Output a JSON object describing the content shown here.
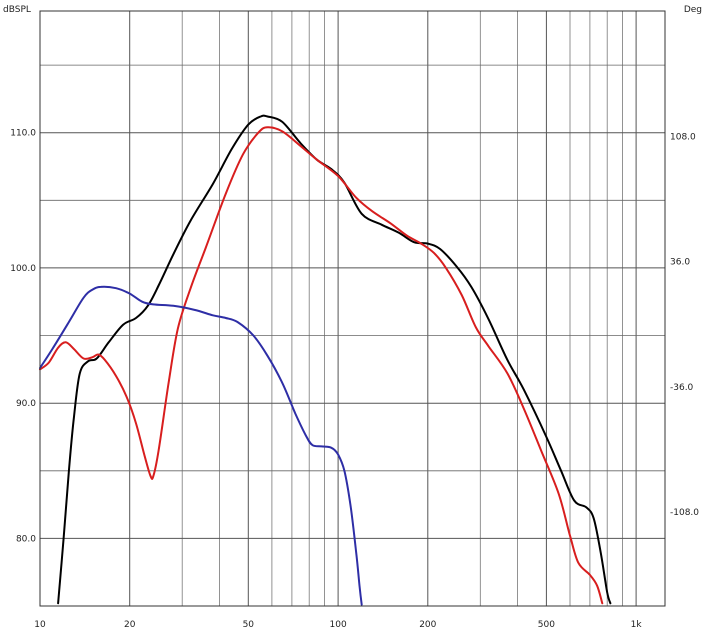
{
  "chart_data": {
    "type": "line",
    "x_scale": "log",
    "xlim": [
      10,
      1250
    ],
    "ylim": [
      75,
      119
    ],
    "y2lim": [
      -162,
      180
    ],
    "grid": true,
    "legend": "none",
    "y_left_label": "dBSPL",
    "y_right_label": "Deg",
    "x_ticks": [
      {
        "value": 10,
        "label": "10"
      },
      {
        "value": 20,
        "label": "20"
      },
      {
        "value": 50,
        "label": "50"
      },
      {
        "value": 100,
        "label": "100"
      },
      {
        "value": 200,
        "label": "200"
      },
      {
        "value": 500,
        "label": "500"
      },
      {
        "value": 1000,
        "label": "1k"
      }
    ],
    "x_minor_grid": [
      30,
      40,
      60,
      70,
      80,
      90,
      300,
      400,
      600,
      700,
      800,
      900
    ],
    "y_ticks": [
      {
        "value": 110,
        "label": "110.0"
      },
      {
        "value": 100,
        "label": "100.0"
      },
      {
        "value": 90,
        "label": "90.0"
      },
      {
        "value": 80,
        "label": "80.0"
      }
    ],
    "y_minor_grid": [
      115,
      105,
      95,
      85
    ],
    "y2_ticks": [
      {
        "value": 108,
        "label": "108.0"
      },
      {
        "value": 36,
        "label": "36.0"
      },
      {
        "value": -36,
        "label": "-36.0"
      },
      {
        "value": -108,
        "label": "-108.0"
      }
    ],
    "series": [
      {
        "color": "#000000",
        "axis": "left",
        "points": [
          [
            11.5,
            75.2
          ],
          [
            12,
            80
          ],
          [
            12.5,
            85
          ],
          [
            13,
            89
          ],
          [
            13.6,
            92.2
          ],
          [
            14.5,
            93.1
          ],
          [
            15.5,
            93.3
          ],
          [
            17,
            94.5
          ],
          [
            19,
            95.8
          ],
          [
            21,
            96.3
          ],
          [
            23,
            97.2
          ],
          [
            25,
            98.7
          ],
          [
            28,
            101
          ],
          [
            32,
            103.5
          ],
          [
            38,
            106.2
          ],
          [
            44,
            108.8
          ],
          [
            50,
            110.6
          ],
          [
            55,
            111.2
          ],
          [
            58,
            111.2
          ],
          [
            65,
            110.8
          ],
          [
            75,
            109.2
          ],
          [
            85,
            108
          ],
          [
            95,
            107.3
          ],
          [
            105,
            106.3
          ],
          [
            120,
            104
          ],
          [
            140,
            103.2
          ],
          [
            160,
            102.6
          ],
          [
            180,
            101.9
          ],
          [
            200,
            101.8
          ],
          [
            220,
            101.4
          ],
          [
            250,
            100.1
          ],
          [
            280,
            98.6
          ],
          [
            320,
            96.2
          ],
          [
            370,
            93.2
          ],
          [
            420,
            91
          ],
          [
            500,
            87.5
          ],
          [
            560,
            85
          ],
          [
            620,
            82.8
          ],
          [
            680,
            82.3
          ],
          [
            720,
            81.5
          ],
          [
            760,
            79
          ],
          [
            800,
            76
          ],
          [
            820,
            75.2
          ]
        ]
      },
      {
        "color": "#d81e1e",
        "axis": "left",
        "points": [
          [
            10,
            92.5
          ],
          [
            10.7,
            93
          ],
          [
            11.5,
            94.1
          ],
          [
            12.2,
            94.5
          ],
          [
            13,
            94
          ],
          [
            14,
            93.3
          ],
          [
            15,
            93.4
          ],
          [
            15.7,
            93.6
          ],
          [
            16.5,
            93.2
          ],
          [
            18,
            92
          ],
          [
            19.5,
            90.5
          ],
          [
            21,
            88.5
          ],
          [
            22.5,
            86
          ],
          [
            23.5,
            84.6
          ],
          [
            24,
            84.6
          ],
          [
            25,
            86.5
          ],
          [
            27,
            91.5
          ],
          [
            29,
            95.5
          ],
          [
            32,
            98.5
          ],
          [
            36,
            101.5
          ],
          [
            42,
            105.5
          ],
          [
            48,
            108.4
          ],
          [
            54,
            110
          ],
          [
            58,
            110.4
          ],
          [
            65,
            110.1
          ],
          [
            75,
            109
          ],
          [
            85,
            108
          ],
          [
            100,
            106.8
          ],
          [
            115,
            105.2
          ],
          [
            130,
            104.2
          ],
          [
            150,
            103.3
          ],
          [
            170,
            102.4
          ],
          [
            190,
            101.8
          ],
          [
            210,
            101.1
          ],
          [
            230,
            100
          ],
          [
            260,
            98
          ],
          [
            290,
            95.6
          ],
          [
            320,
            94.2
          ],
          [
            370,
            92.2
          ],
          [
            420,
            89.6
          ],
          [
            480,
            86.5
          ],
          [
            550,
            83.3
          ],
          [
            600,
            80.2
          ],
          [
            640,
            78.2
          ],
          [
            700,
            77.3
          ],
          [
            740,
            76.5
          ],
          [
            770,
            75.2
          ]
        ]
      },
      {
        "color": "#2e2ea6",
        "axis": "left",
        "points": [
          [
            10,
            92.6
          ],
          [
            11,
            94
          ],
          [
            12.5,
            96
          ],
          [
            14,
            97.8
          ],
          [
            15,
            98.4
          ],
          [
            16,
            98.6
          ],
          [
            18,
            98.5
          ],
          [
            20,
            98.1
          ],
          [
            22,
            97.5
          ],
          [
            24,
            97.3
          ],
          [
            28,
            97.2
          ],
          [
            33,
            96.9
          ],
          [
            38,
            96.5
          ],
          [
            42,
            96.3
          ],
          [
            46,
            96
          ],
          [
            52,
            95
          ],
          [
            58,
            93.5
          ],
          [
            65,
            91.5
          ],
          [
            72,
            89.2
          ],
          [
            78,
            87.6
          ],
          [
            82,
            86.9
          ],
          [
            88,
            86.8
          ],
          [
            95,
            86.7
          ],
          [
            100,
            86.2
          ],
          [
            105,
            85
          ],
          [
            110,
            82.5
          ],
          [
            115,
            79
          ],
          [
            118,
            76.5
          ],
          [
            120,
            75.1
          ]
        ]
      }
    ]
  }
}
